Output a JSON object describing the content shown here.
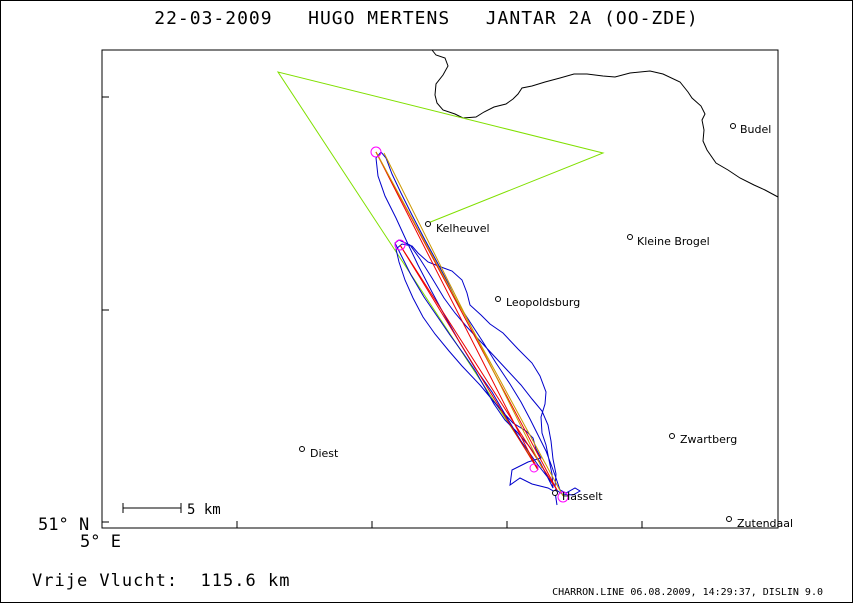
{
  "header": {
    "date": "22-03-2009",
    "pilot": "HUGO MERTENS",
    "glider": "JANTAR 2A (OO-ZDE)"
  },
  "map": {
    "lat_label": "51° N",
    "lon_label": "5° E",
    "scale_label": "5 km",
    "places": [
      "Budel",
      "Kelheuvel",
      "Kleine Brogel",
      "Leopoldsburg",
      "Diest",
      "Zwartberg",
      "Hasselt",
      "Zutendaal"
    ],
    "colors": {
      "border": "#000000",
      "task": "#80e000",
      "track": "#0000cc",
      "legs": "#ee0000",
      "turnpoints": "#ff00ff",
      "legs_alt": "#cc9900"
    }
  },
  "footer": {
    "distance_label": "Vrije Vlucht:",
    "distance_value": "115.6 km",
    "credits": "CHARRON.LINE 06.08.2009, 14:29:37, DISLIN 9.0"
  }
}
